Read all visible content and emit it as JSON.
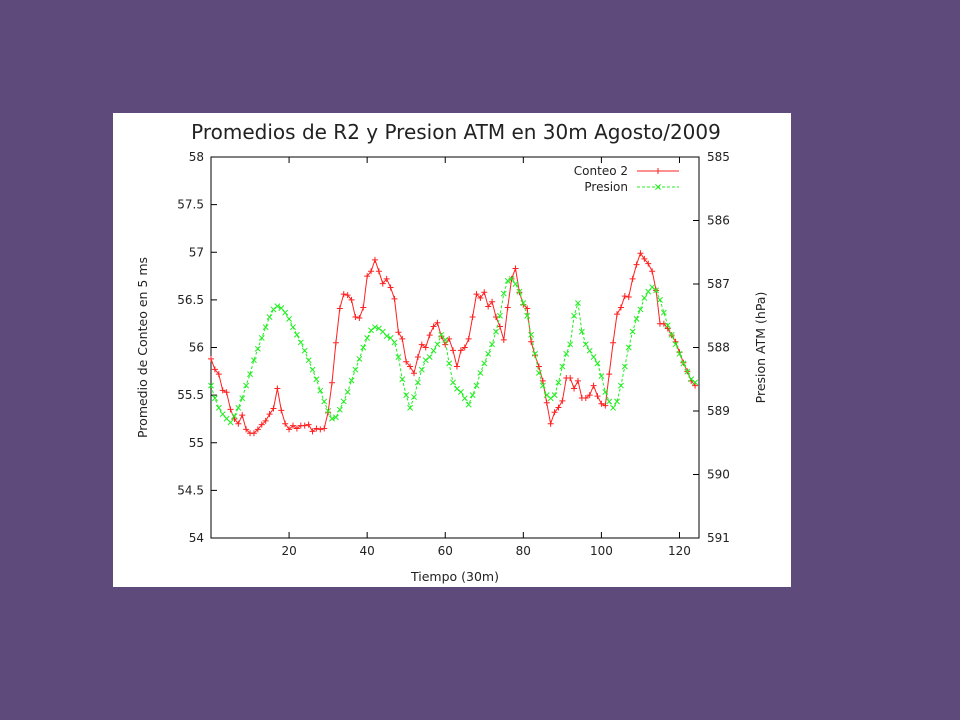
{
  "chart_data": {
    "type": "line",
    "title": "Promedios de R2 y Presion ATM en 30m Agosto/2009",
    "xlabel": "Tiempo (30m)",
    "ylabel": "Promedio de Conteo en 5 ms",
    "y2label": "Presion ATM (hPa)",
    "xlim": [
      0,
      125
    ],
    "ylim": [
      54,
      58
    ],
    "y2lim": [
      585,
      591
    ],
    "y2_inverted": true,
    "x_ticks": [
      20,
      40,
      60,
      80,
      100,
      120
    ],
    "y_ticks": [
      54,
      54.5,
      55,
      55.5,
      56,
      56.5,
      57,
      57.5,
      58
    ],
    "y2_ticks": [
      585,
      586,
      587,
      588,
      589,
      590,
      591
    ],
    "grid": false,
    "legend_position": "top-right",
    "colors": {
      "conteo": "#ff2020",
      "presion": "#22ee22"
    },
    "series": [
      {
        "name": "Conteo 2",
        "axis": "left",
        "marker": "+",
        "values": [
          [
            0,
            55.88
          ],
          [
            1,
            55.77
          ],
          [
            2,
            55.72
          ],
          [
            3,
            55.55
          ],
          [
            4,
            55.53
          ],
          [
            5,
            55.35
          ],
          [
            6,
            55.25
          ],
          [
            7,
            55.2
          ],
          [
            8,
            55.29
          ],
          [
            9,
            55.14
          ],
          [
            10,
            55.1
          ],
          [
            11,
            55.1
          ],
          [
            12,
            55.14
          ],
          [
            13,
            55.19
          ],
          [
            14,
            55.23
          ],
          [
            15,
            55.3
          ],
          [
            16,
            55.36
          ],
          [
            17,
            55.57
          ],
          [
            18,
            55.34
          ],
          [
            19,
            55.2
          ],
          [
            20,
            55.14
          ],
          [
            21,
            55.18
          ],
          [
            22,
            55.15
          ],
          [
            23,
            55.18
          ],
          [
            24,
            55.18
          ],
          [
            25,
            55.19
          ],
          [
            26,
            55.12
          ],
          [
            27,
            55.15
          ],
          [
            28,
            55.14
          ],
          [
            29,
            55.15
          ],
          [
            30,
            55.32
          ],
          [
            31,
            55.63
          ],
          [
            32,
            56.05
          ],
          [
            33,
            56.41
          ],
          [
            34,
            56.56
          ],
          [
            35,
            56.55
          ],
          [
            36,
            56.5
          ],
          [
            37,
            56.32
          ],
          [
            38,
            56.31
          ],
          [
            39,
            56.42
          ],
          [
            40,
            56.75
          ],
          [
            41,
            56.8
          ],
          [
            42,
            56.92
          ],
          [
            43,
            56.8
          ],
          [
            44,
            56.67
          ],
          [
            45,
            56.72
          ],
          [
            46,
            56.63
          ],
          [
            47,
            56.51
          ],
          [
            48,
            56.16
          ],
          [
            49,
            56.09
          ],
          [
            50,
            55.85
          ],
          [
            51,
            55.8
          ],
          [
            52,
            55.73
          ],
          [
            53,
            55.9
          ],
          [
            54,
            56.03
          ],
          [
            55,
            56.0
          ],
          [
            56,
            56.13
          ],
          [
            57,
            56.22
          ],
          [
            58,
            56.26
          ],
          [
            59,
            56.12
          ],
          [
            60,
            56.03
          ],
          [
            61,
            56.09
          ],
          [
            62,
            55.97
          ],
          [
            63,
            55.8
          ],
          [
            64,
            55.97
          ],
          [
            65,
            56.0
          ],
          [
            66,
            56.09
          ],
          [
            67,
            56.32
          ],
          [
            68,
            56.56
          ],
          [
            69,
            56.52
          ],
          [
            70,
            56.58
          ],
          [
            71,
            56.43
          ],
          [
            72,
            56.48
          ],
          [
            73,
            56.32
          ],
          [
            74,
            56.22
          ],
          [
            75,
            56.08
          ],
          [
            76,
            56.42
          ],
          [
            77,
            56.72
          ],
          [
            78,
            56.83
          ],
          [
            79,
            56.58
          ],
          [
            80,
            56.45
          ],
          [
            81,
            56.41
          ],
          [
            82,
            56.06
          ],
          [
            83,
            55.92
          ],
          [
            84,
            55.8
          ],
          [
            85,
            55.65
          ],
          [
            86,
            55.42
          ],
          [
            87,
            55.2
          ],
          [
            88,
            55.32
          ],
          [
            89,
            55.37
          ],
          [
            90,
            55.44
          ],
          [
            91,
            55.68
          ],
          [
            92,
            55.68
          ],
          [
            93,
            55.57
          ],
          [
            94,
            55.65
          ],
          [
            95,
            55.47
          ],
          [
            96,
            55.47
          ],
          [
            97,
            55.5
          ],
          [
            98,
            55.6
          ],
          [
            99,
            55.49
          ],
          [
            100,
            55.41
          ],
          [
            101,
            55.39
          ],
          [
            102,
            55.72
          ],
          [
            103,
            56.05
          ],
          [
            104,
            56.35
          ],
          [
            105,
            56.42
          ],
          [
            106,
            56.54
          ],
          [
            107,
            56.53
          ],
          [
            108,
            56.72
          ],
          [
            109,
            56.87
          ],
          [
            110,
            56.99
          ],
          [
            111,
            56.93
          ],
          [
            112,
            56.88
          ],
          [
            113,
            56.8
          ],
          [
            114,
            56.6
          ],
          [
            115,
            56.25
          ],
          [
            116,
            56.25
          ],
          [
            117,
            56.2
          ],
          [
            118,
            56.13
          ],
          [
            119,
            56.06
          ],
          [
            120,
            55.95
          ],
          [
            121,
            55.84
          ],
          [
            122,
            55.75
          ],
          [
            123,
            55.65
          ],
          [
            124,
            55.6
          ]
        ]
      },
      {
        "name": "Presion",
        "axis": "right",
        "marker": "x",
        "values": [
          [
            0,
            588.6
          ],
          [
            1,
            588.8
          ],
          [
            2,
            588.95
          ],
          [
            3,
            589.05
          ],
          [
            4,
            589.12
          ],
          [
            5,
            589.18
          ],
          [
            6,
            589.08
          ],
          [
            7,
            588.95
          ],
          [
            8,
            588.8
          ],
          [
            9,
            588.6
          ],
          [
            10,
            588.42
          ],
          [
            11,
            588.2
          ],
          [
            12,
            588.02
          ],
          [
            13,
            587.85
          ],
          [
            14,
            587.68
          ],
          [
            15,
            587.52
          ],
          [
            16,
            587.4
          ],
          [
            17,
            587.35
          ],
          [
            18,
            587.38
          ],
          [
            19,
            587.45
          ],
          [
            20,
            587.55
          ],
          [
            21,
            587.68
          ],
          [
            22,
            587.8
          ],
          [
            23,
            587.92
          ],
          [
            24,
            588.05
          ],
          [
            25,
            588.2
          ],
          [
            26,
            588.35
          ],
          [
            27,
            588.5
          ],
          [
            28,
            588.68
          ],
          [
            29,
            588.85
          ],
          [
            30,
            589.0
          ],
          [
            31,
            589.12
          ],
          [
            32,
            589.1
          ],
          [
            33,
            588.98
          ],
          [
            34,
            588.85
          ],
          [
            35,
            588.7
          ],
          [
            36,
            588.52
          ],
          [
            37,
            588.35
          ],
          [
            38,
            588.18
          ],
          [
            39,
            588.0
          ],
          [
            40,
            587.85
          ],
          [
            41,
            587.73
          ],
          [
            42,
            587.68
          ],
          [
            43,
            587.7
          ],
          [
            44,
            587.75
          ],
          [
            45,
            587.82
          ],
          [
            46,
            587.85
          ],
          [
            47,
            587.92
          ],
          [
            48,
            588.15
          ],
          [
            49,
            588.5
          ],
          [
            50,
            588.75
          ],
          [
            51,
            588.95
          ],
          [
            52,
            588.78
          ],
          [
            53,
            588.55
          ],
          [
            54,
            588.35
          ],
          [
            55,
            588.2
          ],
          [
            56,
            588.15
          ],
          [
            57,
            588.05
          ],
          [
            58,
            587.95
          ],
          [
            59,
            587.8
          ],
          [
            60,
            587.88
          ],
          [
            61,
            588.25
          ],
          [
            62,
            588.55
          ],
          [
            63,
            588.65
          ],
          [
            64,
            588.7
          ],
          [
            65,
            588.8
          ],
          [
            66,
            588.9
          ],
          [
            67,
            588.75
          ],
          [
            68,
            588.6
          ],
          [
            69,
            588.4
          ],
          [
            70,
            588.25
          ],
          [
            71,
            588.1
          ],
          [
            72,
            587.95
          ],
          [
            73,
            587.75
          ],
          [
            74,
            587.5
          ],
          [
            75,
            587.15
          ],
          [
            76,
            586.95
          ],
          [
            77,
            586.92
          ],
          [
            78,
            587.0
          ],
          [
            79,
            587.12
          ],
          [
            80,
            587.3
          ],
          [
            81,
            587.5
          ],
          [
            82,
            587.8
          ],
          [
            83,
            588.1
          ],
          [
            84,
            588.4
          ],
          [
            85,
            588.6
          ],
          [
            86,
            588.75
          ],
          [
            87,
            588.8
          ],
          [
            88,
            588.75
          ],
          [
            89,
            588.55
          ],
          [
            90,
            588.3
          ],
          [
            91,
            588.1
          ],
          [
            92,
            587.95
          ],
          [
            93,
            587.5
          ],
          [
            94,
            587.3
          ],
          [
            95,
            587.75
          ],
          [
            96,
            587.95
          ],
          [
            97,
            588.05
          ],
          [
            98,
            588.15
          ],
          [
            99,
            588.25
          ],
          [
            100,
            588.45
          ],
          [
            101,
            588.7
          ],
          [
            102,
            588.85
          ],
          [
            103,
            588.95
          ],
          [
            104,
            588.85
          ],
          [
            105,
            588.6
          ],
          [
            106,
            588.3
          ],
          [
            107,
            588.0
          ],
          [
            108,
            587.75
          ],
          [
            109,
            587.55
          ],
          [
            110,
            587.4
          ],
          [
            111,
            587.22
          ],
          [
            112,
            587.12
          ],
          [
            113,
            587.05
          ],
          [
            114,
            587.1
          ],
          [
            115,
            587.25
          ],
          [
            116,
            587.45
          ],
          [
            117,
            587.65
          ],
          [
            118,
            587.8
          ],
          [
            119,
            587.95
          ],
          [
            120,
            588.1
          ],
          [
            121,
            588.25
          ],
          [
            122,
            588.38
          ],
          [
            123,
            588.5
          ],
          [
            124,
            588.55
          ]
        ]
      }
    ]
  }
}
